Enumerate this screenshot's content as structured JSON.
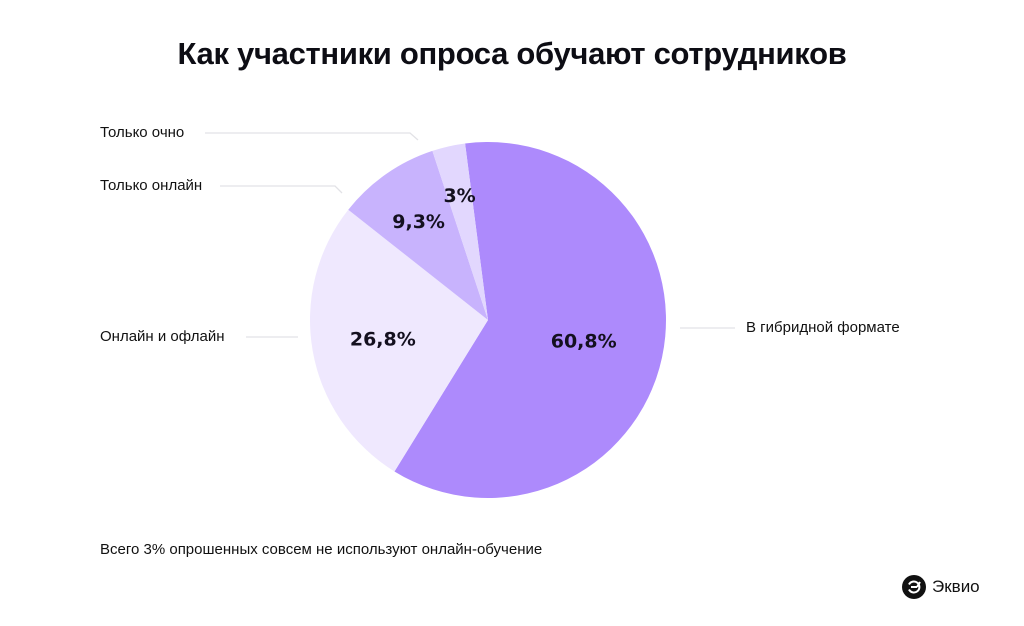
{
  "chart_data": {
    "type": "pie",
    "title": "Как участники опроса обучают сотрудников",
    "slices": [
      {
        "label": "В гибридной формате",
        "value": 60.8,
        "value_label": "60,8%",
        "color": "#ad8afc"
      },
      {
        "label": "Онлайн и офлайн",
        "value": 26.8,
        "value_label": "26,8%",
        "color": "#efe8fe"
      },
      {
        "label": "Только онлайн",
        "value": 9.3,
        "value_label": "9,3%",
        "color": "#c8b3fd"
      },
      {
        "label": "Только очно",
        "value": 3,
        "value_label": "3%",
        "color": "#e2d7fe"
      }
    ],
    "start": "top, clockwise",
    "note": "Всего 3% опрошенных совсем не используют онлайн-обучение"
  },
  "brand": {
    "name": "Эквио",
    "logo_icon": "ekvio-logo-icon"
  },
  "colors": {
    "leader_line": "#e2e2e6",
    "text": "#111111"
  }
}
